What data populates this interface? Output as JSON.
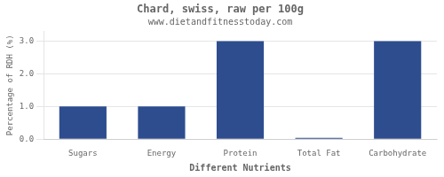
{
  "chart_data": {
    "type": "bar",
    "title": "Chard, swiss, raw per 100g",
    "subtitle": "www.dietandfitnesstoday.com",
    "xlabel": "Different Nutrients",
    "ylabel": "Percentage of RDH (%)",
    "categories": [
      "Sugars",
      "Energy",
      "Protein",
      "Total Fat",
      "Carbohydrate"
    ],
    "values": [
      1.0,
      1.0,
      3.0,
      0.04,
      3.0
    ],
    "color": "#2e4d8f",
    "ylim": [
      0,
      3.3
    ],
    "yticks": [
      {
        "value": 0.0,
        "label": "0.0"
      },
      {
        "value": 1.0,
        "label": "1.0"
      },
      {
        "value": 2.0,
        "label": "2.0"
      },
      {
        "value": 3.0,
        "label": "3.0"
      }
    ],
    "grid": true
  }
}
